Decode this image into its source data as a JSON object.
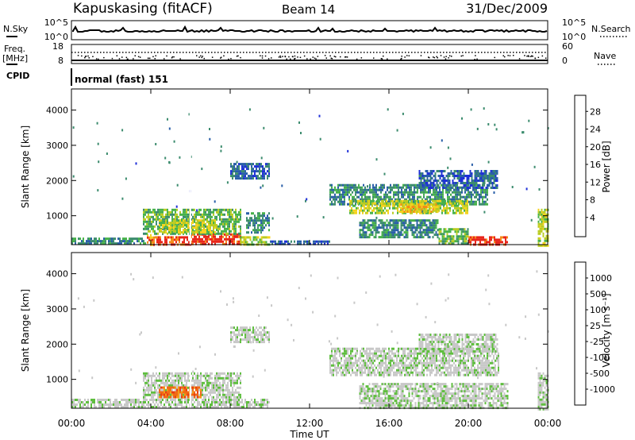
{
  "header": {
    "station": "Kapuskasing (fitACF)",
    "beam": "Beam 14",
    "date": "31/Dec/2009"
  },
  "top_panels": {
    "nsky_label": "N.Sky",
    "nsearch_label": "N.Search",
    "nsky_ticks": [
      "10^5",
      "10^0"
    ],
    "nsky_ticks_right": [
      "10^5",
      "10^0"
    ],
    "freq_label": "Freq.",
    "freq_unit": "[MHz]",
    "freq_ticks": [
      "18",
      "8"
    ],
    "nave_label": "Nave",
    "nave_ticks": [
      "60",
      "0"
    ],
    "cpid_label": "CPID",
    "cpid_value": "normal (fast) 151"
  },
  "colors": {
    "power_scale": [
      "#1e2fd8",
      "#2a5fa8",
      "#3c8c6e",
      "#47b24a",
      "#b9cc22",
      "#f4d21c",
      "#f58a17",
      "#e8251a"
    ],
    "velocity_scale": [
      "#1f3ab0",
      "#2f6db2",
      "#3f8f5f",
      "#5fbe3f",
      "#c8c8c8",
      "#c8c8c8",
      "#f39b17",
      "#f06a16",
      "#e83c14",
      "#e01010"
    ]
  },
  "chart_data": [
    {
      "type": "heatmap",
      "name": "power",
      "ylabel": "Slant Range [km]",
      "yticks": [
        "4000",
        "3000",
        "2000",
        "1000"
      ],
      "ylim": [
        180,
        4600
      ],
      "xlim": [
        0,
        24
      ],
      "xticks": [
        "00:00",
        "04:00",
        "08:00",
        "12:00",
        "16:00",
        "20:00",
        "00:00"
      ],
      "colorbar_label": "Power [dB]",
      "colorbar_ticks": [
        "28",
        "24",
        "20",
        "16",
        "12",
        "8",
        "4"
      ],
      "bands": [
        {
          "t0": 0.0,
          "t1": 3.7,
          "r0": 180,
          "r1": 380,
          "level": 2
        },
        {
          "t0": 3.8,
          "t1": 4.2,
          "r0": 180,
          "r1": 480,
          "level": 6
        },
        {
          "t0": 4.2,
          "t1": 6.0,
          "r0": 180,
          "r1": 420,
          "level": 7
        },
        {
          "t0": 6.0,
          "t1": 8.5,
          "r0": 180,
          "r1": 500,
          "level": 7
        },
        {
          "t0": 8.5,
          "t1": 10.0,
          "r0": 180,
          "r1": 420,
          "level": 4
        },
        {
          "t0": 10.0,
          "t1": 13.0,
          "r0": 180,
          "r1": 300,
          "level": 1
        },
        {
          "t0": 3.6,
          "t1": 8.5,
          "r0": 500,
          "r1": 1200,
          "level": 3
        },
        {
          "t0": 4.4,
          "t1": 7.3,
          "r0": 560,
          "r1": 900,
          "level": 4
        },
        {
          "t0": 8.8,
          "t1": 10.0,
          "r0": 500,
          "r1": 1100,
          "level": 2
        },
        {
          "t0": 8.0,
          "t1": 10.0,
          "r0": 2050,
          "r1": 2500,
          "level": 1
        },
        {
          "t0": 13.0,
          "t1": 21.0,
          "r0": 1350,
          "r1": 1900,
          "level": 2
        },
        {
          "t0": 14.0,
          "t1": 20.0,
          "r0": 1100,
          "r1": 1450,
          "level": 4
        },
        {
          "t0": 16.5,
          "t1": 18.5,
          "r0": 1100,
          "r1": 1350,
          "level": 5
        },
        {
          "t0": 17.5,
          "t1": 21.5,
          "r0": 1800,
          "r1": 2300,
          "level": 1
        },
        {
          "t0": 14.5,
          "t1": 18.5,
          "r0": 400,
          "r1": 900,
          "level": 2
        },
        {
          "t0": 18.5,
          "t1": 20.0,
          "r0": 180,
          "r1": 650,
          "level": 3
        },
        {
          "t0": 20.0,
          "t1": 22.0,
          "r0": 180,
          "r1": 420,
          "level": 7
        },
        {
          "t0": 23.5,
          "t1": 24.0,
          "r0": 180,
          "r1": 1200,
          "level": 4
        }
      ]
    },
    {
      "type": "heatmap",
      "name": "velocity",
      "ylabel": "Slant Range [km]",
      "yticks": [
        "4000",
        "3000",
        "2000",
        "1000"
      ],
      "ylim": [
        180,
        4600
      ],
      "xlim": [
        0,
        24
      ],
      "xticks": [
        "00:00",
        "04:00",
        "08:00",
        "12:00",
        "16:00",
        "20:00",
        "00:00"
      ],
      "xlabel": "Time UT",
      "colorbar_label": "Velocity [m s⁻¹]",
      "colorbar_ticks": [
        "1000",
        "500",
        "100",
        "25",
        "-25",
        "-100",
        "-500",
        "-1000"
      ],
      "bands": [
        {
          "t0": 0.0,
          "t1": 10.0,
          "r0": 180,
          "r1": 450,
          "level": 4
        },
        {
          "t0": 3.6,
          "t1": 8.5,
          "r0": 500,
          "r1": 1200,
          "level": 4
        },
        {
          "t0": 4.4,
          "t1": 6.5,
          "r0": 500,
          "r1": 800,
          "level": 7
        },
        {
          "t0": 8.0,
          "t1": 10.0,
          "r0": 2050,
          "r1": 2500,
          "level": 4
        },
        {
          "t0": 13.0,
          "t1": 21.5,
          "r0": 1100,
          "r1": 1900,
          "level": 4
        },
        {
          "t0": 17.5,
          "t1": 21.5,
          "r0": 1800,
          "r1": 2300,
          "level": 4
        },
        {
          "t0": 14.5,
          "t1": 22.0,
          "r0": 180,
          "r1": 900,
          "level": 4
        },
        {
          "t0": 23.5,
          "t1": 24.0,
          "r0": 180,
          "r1": 1200,
          "level": 4
        }
      ]
    }
  ],
  "axis": {
    "xlabel": "Time UT"
  }
}
